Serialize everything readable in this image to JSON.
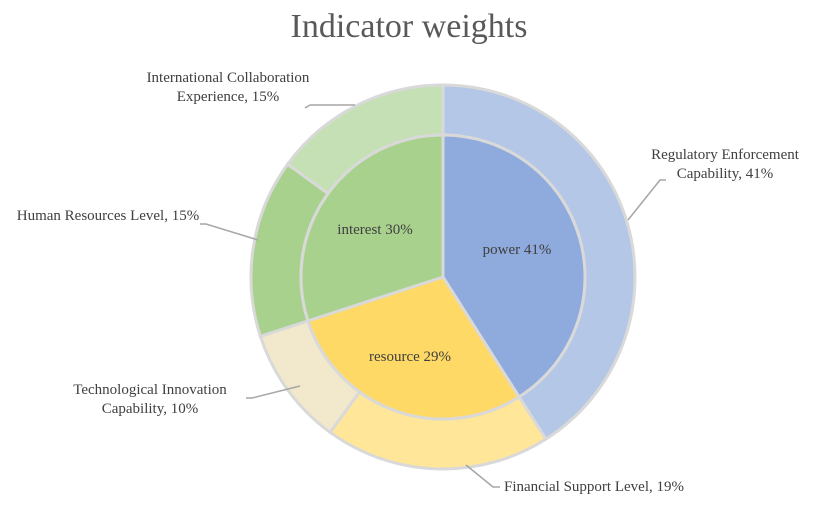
{
  "chart_data": {
    "type": "sunburst",
    "title": "Indicator weights",
    "inner": {
      "categories": [
        "power",
        "resource",
        "interest"
      ],
      "values": [
        41,
        29,
        30
      ],
      "value_labels": [
        "41%",
        "29%",
        "30%"
      ],
      "colors": [
        "#8faadc",
        "#ffd966",
        "#a9d18e"
      ]
    },
    "outer": {
      "categories": [
        "Regulatory Enforcement Capability",
        "Financial Support Level",
        "Technological Innovation Capability",
        "Human Resources Level",
        "International Collaboration Experience"
      ],
      "values": [
        41,
        19,
        10,
        15,
        15
      ],
      "value_labels": [
        "41%",
        "19%",
        "10%",
        "15%",
        "15%"
      ],
      "colors": [
        "#b4c7e7",
        "#ffe699",
        "#f2e8cc",
        "#a9d18e",
        "#c5e0b4"
      ]
    }
  }
}
